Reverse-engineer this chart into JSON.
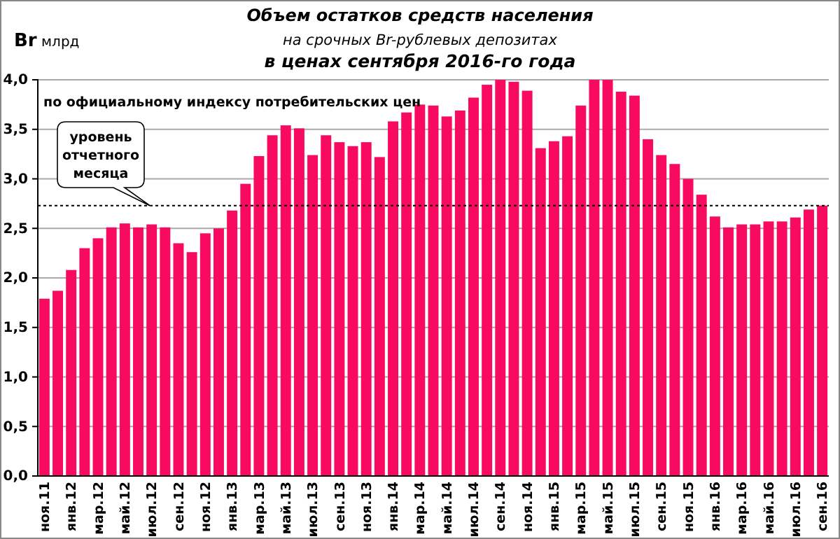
{
  "chart_data": {
    "type": "bar",
    "title": "Объем остатков средств населения",
    "subtitle": "на срочных Br-рублевых депозитах\nв ценах сентября 2016-го года",
    "ylabel": "Br млрд",
    "annotations": [
      "по официальному индексу потребительских цен"
    ],
    "categories": [
      "ноя.11",
      null,
      "янв.12",
      null,
      "мар.12",
      null,
      "май.12",
      null,
      "июл.12",
      null,
      "сен.12",
      null,
      "ноя.12",
      null,
      "янв.13",
      null,
      "мар.13",
      null,
      "май.13",
      null,
      "июл.13",
      null,
      "сен.13",
      null,
      "ноя.13",
      null,
      "янв.14",
      null,
      "мар.14",
      null,
      "май.14",
      null,
      "июл.14",
      null,
      "сен.14",
      null,
      "ноя.14",
      null,
      "янв.15",
      null,
      "мар.15",
      null,
      "май.15",
      null,
      "июл.15",
      null,
      "сен.15",
      null,
      "ноя.15",
      null,
      "янв.16",
      null,
      "мар.16",
      null,
      "май.16",
      null,
      "июл.16",
      null,
      "сен.16"
    ],
    "values": [
      1.79,
      1.87,
      2.08,
      2.3,
      2.4,
      2.51,
      2.55,
      2.51,
      2.54,
      2.51,
      2.35,
      2.26,
      2.45,
      2.5,
      2.68,
      2.95,
      3.23,
      3.44,
      3.54,
      3.51,
      3.24,
      3.44,
      3.37,
      3.33,
      3.37,
      3.22,
      3.58,
      3.67,
      3.75,
      3.74,
      3.63,
      3.69,
      3.82,
      3.95,
      4.0,
      3.98,
      3.89,
      3.31,
      3.38,
      3.43,
      3.74,
      4.0,
      4.0,
      3.88,
      3.84,
      3.4,
      3.24,
      3.15,
      3.0,
      2.84,
      2.62,
      2.51,
      2.54,
      2.54,
      2.57,
      2.57,
      2.61,
      2.69,
      2.73
    ],
    "color": "#f70a60",
    "ylim": [
      0,
      4
    ],
    "yticks": [
      {
        "value": 0,
        "label": "0,0"
      },
      {
        "value": 0.5,
        "label": "0,5"
      },
      {
        "value": 1,
        "label": "1,0"
      },
      {
        "value": 1.5,
        "label": "1,5"
      },
      {
        "value": 2,
        "label": "2,0"
      },
      {
        "value": 2.5,
        "label": "2,5"
      },
      {
        "value": 3,
        "label": "3,0"
      },
      {
        "value": 3.5,
        "label": "3,5"
      },
      {
        "value": 4,
        "label": "4,0"
      }
    ],
    "grid": "y",
    "ref_lines": [
      {
        "axis": "y",
        "value": 2.73,
        "label": "уровень отчетного месяца",
        "line_style": "dotted",
        "color": "#000000"
      }
    ]
  }
}
